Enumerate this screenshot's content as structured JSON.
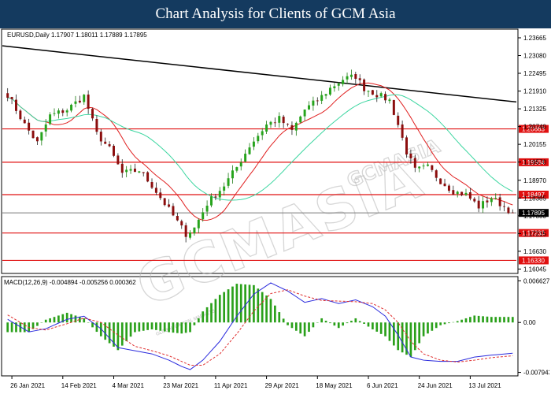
{
  "banner": {
    "title": "Chart Analysis for Clients of GCM Asia"
  },
  "watermark": {
    "brand": "GCMASIA",
    "logo_text": "GCMASIA",
    "sub_text": "GLOBAL CAPITAL MARKETS"
  },
  "chart_data": [
    {
      "type": "candlestick",
      "title": "EURUSD,Daily  1.17907 1.18011 1.17889 1.17895",
      "symbol": "EURUSD",
      "timeframe": "Daily",
      "ohlc_last": {
        "open": 1.17907,
        "high": 1.18011,
        "low": 1.17889,
        "close": 1.17895
      },
      "ylim": [
        1.159,
        1.2395
      ],
      "y_ticks": [
        1.23665,
        1.2308,
        1.22495,
        1.2191,
        1.21325,
        1.2074,
        1.20155,
        1.1957,
        1.1897,
        1.18385,
        1.178,
        1.17215,
        1.1663,
        1.16045
      ],
      "y_tick_labels": [
        "1.23665",
        "1.23080",
        "1.22495",
        "1.21910",
        "1.21325",
        "1.20740",
        "1.20155",
        "1.19570",
        "1.18970",
        "1.18385",
        "1.17800",
        "1.17215",
        "1.16630",
        "1.16045"
      ],
      "x_tick_labels": [
        "26 Jan 2021",
        "14 Feb 2021",
        "4 Mar 2021",
        "23 Mar 2021",
        "11 Apr 2021",
        "29 Apr 2021",
        "18 May 2021",
        "6 Jun 2021",
        "24 Jun 2021",
        "13 Jul 2021"
      ],
      "n_bars": 120,
      "current_price": {
        "value": 1.17895,
        "label": "1.17895",
        "color": "#000000"
      },
      "levels": [
        {
          "value": 1.20663,
          "label": "1.20663"
        },
        {
          "value": 1.19564,
          "label": "1.19564"
        },
        {
          "value": 1.18497,
          "label": "1.18497"
        },
        {
          "value": 1.17233,
          "label": "1.17233"
        },
        {
          "value": 1.1633,
          "label": "1.16330"
        }
      ],
      "trendline": {
        "start": {
          "bar": 0,
          "price": 1.234
        },
        "end": {
          "bar": 119,
          "price": 1.2155
        },
        "color": "#000000"
      },
      "close_anchors": [
        [
          0,
          1.218
        ],
        [
          4,
          1.208
        ],
        [
          7,
          1.202
        ],
        [
          10,
          1.211
        ],
        [
          14,
          1.213
        ],
        [
          18,
          1.2175
        ],
        [
          21,
          1.205
        ],
        [
          24,
          1.2
        ],
        [
          27,
          1.192
        ],
        [
          31,
          1.193
        ],
        [
          34,
          1.188
        ],
        [
          37,
          1.182
        ],
        [
          40,
          1.176
        ],
        [
          42,
          1.172
        ],
        [
          44,
          1.174
        ],
        [
          47,
          1.182
        ],
        [
          51,
          1.188
        ],
        [
          54,
          1.194
        ],
        [
          57,
          1.201
        ],
        [
          61,
          1.208
        ],
        [
          64,
          1.21
        ],
        [
          67,
          1.206
        ],
        [
          70,
          1.213
        ],
        [
          73,
          1.216
        ],
        [
          76,
          1.22
        ],
        [
          79,
          1.223
        ],
        [
          82,
          1.224
        ],
        [
          84,
          1.22
        ],
        [
          87,
          1.218
        ],
        [
          90,
          1.216
        ],
        [
          92,
          1.208
        ],
        [
          94,
          1.199
        ],
        [
          96,
          1.193
        ],
        [
          99,
          1.194
        ],
        [
          102,
          1.1895
        ],
        [
          105,
          1.186
        ],
        [
          108,
          1.185
        ],
        [
          111,
          1.181
        ],
        [
          114,
          1.184
        ],
        [
          117,
          1.181
        ],
        [
          119,
          1.17895
        ]
      ],
      "ma_fast": {
        "name": "",
        "color": "#e02020"
      },
      "ma_slow": {
        "name": "",
        "color": "#3cd6a0"
      },
      "candle_colors": {
        "bull": "#26a41c",
        "bear": "#8b0d0d"
      },
      "grid": false
    },
    {
      "type": "macd",
      "title": "MACD(12,26,9) -0.004894 -0.005256 0.000362",
      "params": [
        12,
        26,
        9
      ],
      "values_last": {
        "macd": -0.004894,
        "signal": -0.005256,
        "hist": 0.000362
      },
      "ylim": [
        -0.0085,
        0.0073
      ],
      "y_ticks": [
        0.006627,
        0.0,
        -0.007943
      ],
      "y_tick_labels": [
        "0.006627",
        "0.00",
        "-0.007943"
      ],
      "macd_anchors": [
        [
          0,
          0.0005
        ],
        [
          5,
          -0.0015
        ],
        [
          9,
          -0.001
        ],
        [
          14,
          0.0005
        ],
        [
          18,
          0.001
        ],
        [
          22,
          -0.001
        ],
        [
          26,
          -0.004
        ],
        [
          30,
          -0.0045
        ],
        [
          34,
          -0.005
        ],
        [
          38,
          -0.006
        ],
        [
          41,
          -0.007
        ],
        [
          43,
          -0.0075
        ],
        [
          46,
          -0.006
        ],
        [
          50,
          -0.003
        ],
        [
          54,
          0.001
        ],
        [
          58,
          0.0045
        ],
        [
          62,
          0.0063
        ],
        [
          66,
          0.005
        ],
        [
          70,
          0.0032
        ],
        [
          74,
          0.0038
        ],
        [
          78,
          0.003
        ],
        [
          82,
          0.0036
        ],
        [
          86,
          0.0025
        ],
        [
          89,
          0.001
        ],
        [
          92,
          -0.002
        ],
        [
          95,
          -0.0055
        ],
        [
          98,
          -0.006
        ],
        [
          102,
          -0.0062
        ],
        [
          106,
          -0.0062
        ],
        [
          110,
          -0.0055
        ],
        [
          114,
          -0.0052
        ],
        [
          119,
          -0.0049
        ]
      ],
      "signal_anchors": [
        [
          0,
          0.0012
        ],
        [
          5,
          -0.0008
        ],
        [
          9,
          -0.0012
        ],
        [
          14,
          -0.0002
        ],
        [
          18,
          0.0007
        ],
        [
          22,
          0.0
        ],
        [
          26,
          -0.002
        ],
        [
          30,
          -0.0038
        ],
        [
          34,
          -0.0045
        ],
        [
          38,
          -0.0053
        ],
        [
          41,
          -0.0062
        ],
        [
          43,
          -0.0068
        ],
        [
          46,
          -0.0068
        ],
        [
          50,
          -0.005
        ],
        [
          54,
          -0.0018
        ],
        [
          58,
          0.0018
        ],
        [
          62,
          0.0046
        ],
        [
          66,
          0.0052
        ],
        [
          70,
          0.0042
        ],
        [
          74,
          0.0035
        ],
        [
          78,
          0.0034
        ],
        [
          82,
          0.0033
        ],
        [
          86,
          0.003
        ],
        [
          89,
          0.002
        ],
        [
          92,
          0.0
        ],
        [
          95,
          -0.003
        ],
        [
          98,
          -0.005
        ],
        [
          102,
          -0.006
        ],
        [
          106,
          -0.0063
        ],
        [
          110,
          -0.006
        ],
        [
          114,
          -0.0056
        ],
        [
          119,
          -0.0053
        ]
      ],
      "colors": {
        "macd": "#2b2bdd",
        "signal": "#e03030",
        "hist": "#2aa01a"
      }
    }
  ]
}
